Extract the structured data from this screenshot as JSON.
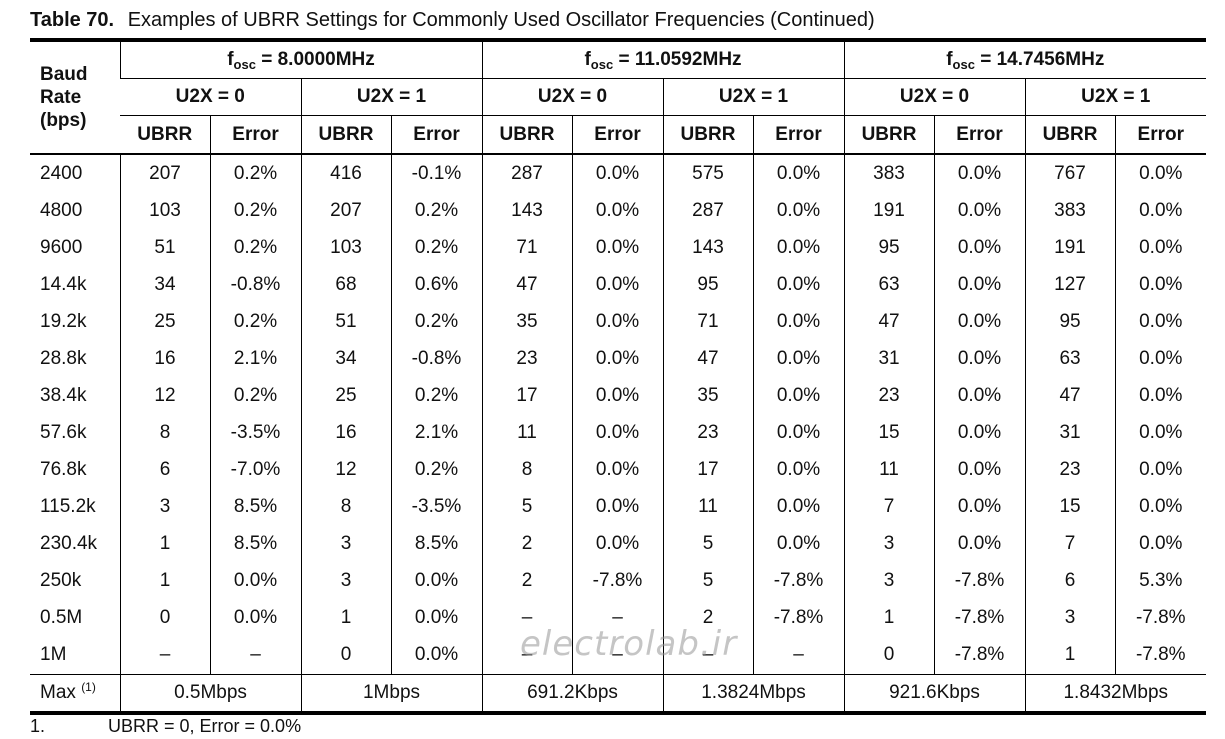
{
  "caption": {
    "number": "Table 70.",
    "title": "Examples of UBRR Settings for Commonly Used Oscillator Frequencies (Continued)"
  },
  "header": {
    "baud_label_lines": [
      "Baud",
      "Rate",
      "(bps)"
    ],
    "fosc_prefix": "f",
    "fosc_sub": "osc",
    "frequencies": [
      " = 8.0000MHz",
      " = 11.0592MHz",
      " = 14.7456MHz"
    ],
    "u2x_labels": [
      "U2X = 0",
      "U2X = 1",
      "U2X = 0",
      "U2X = 1",
      "U2X = 0",
      "U2X = 1"
    ],
    "col_ubrr": "UBRR",
    "col_error": "Error"
  },
  "rows": [
    [
      "2400",
      "207",
      "0.2%",
      "416",
      "-0.1%",
      "287",
      "0.0%",
      "575",
      "0.0%",
      "383",
      "0.0%",
      "767",
      "0.0%"
    ],
    [
      "4800",
      "103",
      "0.2%",
      "207",
      "0.2%",
      "143",
      "0.0%",
      "287",
      "0.0%",
      "191",
      "0.0%",
      "383",
      "0.0%"
    ],
    [
      "9600",
      "51",
      "0.2%",
      "103",
      "0.2%",
      "71",
      "0.0%",
      "143",
      "0.0%",
      "95",
      "0.0%",
      "191",
      "0.0%"
    ],
    [
      "14.4k",
      "34",
      "-0.8%",
      "68",
      "0.6%",
      "47",
      "0.0%",
      "95",
      "0.0%",
      "63",
      "0.0%",
      "127",
      "0.0%"
    ],
    [
      "19.2k",
      "25",
      "0.2%",
      "51",
      "0.2%",
      "35",
      "0.0%",
      "71",
      "0.0%",
      "47",
      "0.0%",
      "95",
      "0.0%"
    ],
    [
      "28.8k",
      "16",
      "2.1%",
      "34",
      "-0.8%",
      "23",
      "0.0%",
      "47",
      "0.0%",
      "31",
      "0.0%",
      "63",
      "0.0%"
    ],
    [
      "38.4k",
      "12",
      "0.2%",
      "25",
      "0.2%",
      "17",
      "0.0%",
      "35",
      "0.0%",
      "23",
      "0.0%",
      "47",
      "0.0%"
    ],
    [
      "57.6k",
      "8",
      "-3.5%",
      "16",
      "2.1%",
      "11",
      "0.0%",
      "23",
      "0.0%",
      "15",
      "0.0%",
      "31",
      "0.0%"
    ],
    [
      "76.8k",
      "6",
      "-7.0%",
      "12",
      "0.2%",
      "8",
      "0.0%",
      "17",
      "0.0%",
      "11",
      "0.0%",
      "23",
      "0.0%"
    ],
    [
      "115.2k",
      "3",
      "8.5%",
      "8",
      "-3.5%",
      "5",
      "0.0%",
      "11",
      "0.0%",
      "7",
      "0.0%",
      "15",
      "0.0%"
    ],
    [
      "230.4k",
      "1",
      "8.5%",
      "3",
      "8.5%",
      "2",
      "0.0%",
      "5",
      "0.0%",
      "3",
      "0.0%",
      "7",
      "0.0%"
    ],
    [
      "250k",
      "1",
      "0.0%",
      "3",
      "0.0%",
      "2",
      "-7.8%",
      "5",
      "-7.8%",
      "3",
      "-7.8%",
      "6",
      "5.3%"
    ],
    [
      "0.5M",
      "0",
      "0.0%",
      "1",
      "0.0%",
      "–",
      "–",
      "2",
      "-7.8%",
      "1",
      "-7.8%",
      "3",
      "-7.8%"
    ],
    [
      "1M",
      "–",
      "–",
      "0",
      "0.0%",
      "–",
      "–",
      "–",
      "–",
      "0",
      "-7.8%",
      "1",
      "-7.8%"
    ]
  ],
  "footer": {
    "label": "Max",
    "label_sup": "(1)",
    "values": [
      "0.5Mbps",
      "1Mbps",
      "691.2Kbps",
      "1.3824Mbps",
      "921.6Kbps",
      "1.8432Mbps"
    ]
  },
  "footnote": {
    "number": "1.",
    "text": "UBRR = 0, Error = 0.0%"
  },
  "watermark": "electrolab.ir"
}
